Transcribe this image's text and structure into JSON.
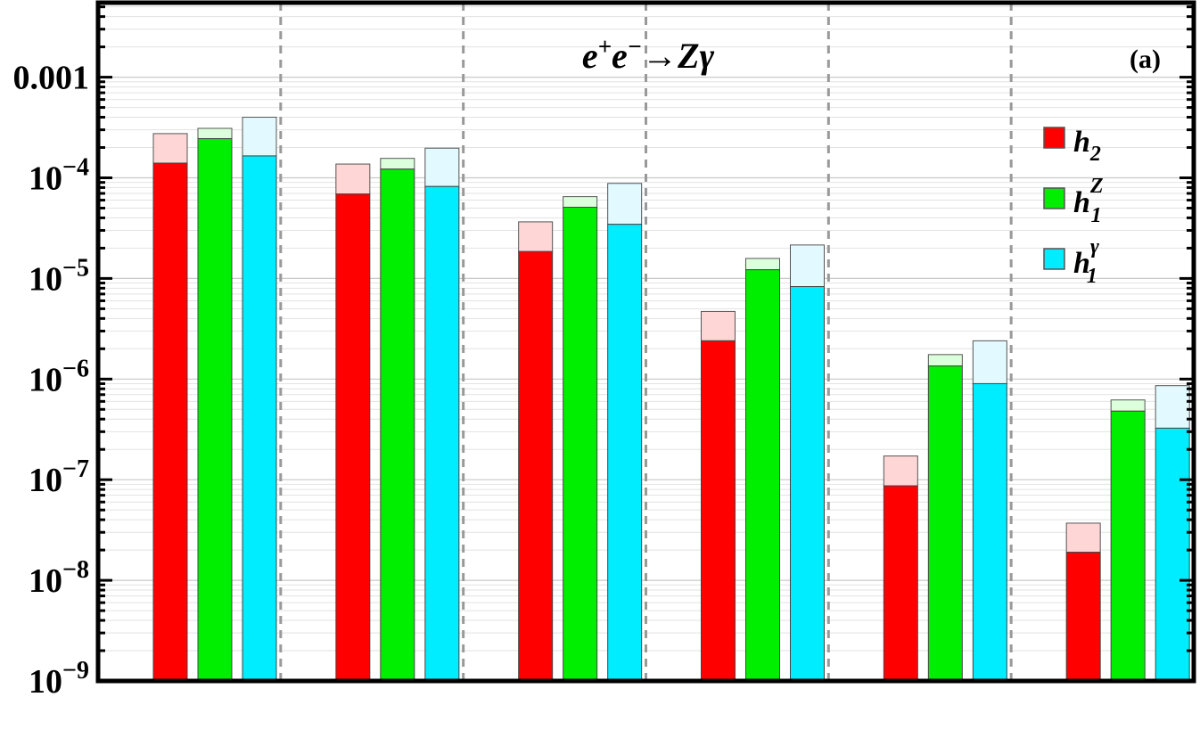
{
  "chart_data": {
    "type": "bar",
    "title": {
      "e": "e",
      "sup1": "+",
      "sup2": "−",
      "arrow": "→",
      "Z": "Z",
      "gamma": "γ"
    },
    "panel_label": "(a)",
    "xlabel": "",
    "ylabel": "",
    "yscale": "log",
    "ylim": [
      1e-09,
      0.0055
    ],
    "grid": true,
    "legend_position": "top-right",
    "yticks": [
      {
        "value": 0.001,
        "base": "0.001",
        "exp": ""
      },
      {
        "value": 0.0001,
        "base": "10",
        "exp": "−4"
      },
      {
        "value": 1e-05,
        "base": "10",
        "exp": "−5"
      },
      {
        "value": 1e-06,
        "base": "10",
        "exp": "−6"
      },
      {
        "value": 1e-07,
        "base": "10",
        "exp": "−7"
      },
      {
        "value": 1e-08,
        "base": "10",
        "exp": "−8"
      },
      {
        "value": 1e-09,
        "base": "10",
        "exp": "−9"
      }
    ],
    "group_count": 6,
    "series": [
      {
        "key": "h2",
        "label": "h",
        "sub": "2",
        "sup": "",
        "color": "#ff0000",
        "light_color": "#ffd6d6",
        "values": [
          0.00014,
          6.9e-05,
          1.85e-05,
          2.4e-06,
          8.7e-08,
          1.9e-08
        ],
        "upper": [
          0.000275,
          0.000137,
          3.65e-05,
          4.7e-06,
          1.72e-07,
          3.7e-08
        ]
      },
      {
        "key": "h1Z",
        "label": "h",
        "sub": "1",
        "sup": "Z",
        "color": "#00ee00",
        "light_color": "#dcffdc",
        "values": [
          0.000245,
          0.000122,
          5.1e-05,
          1.22e-05,
          1.35e-06,
          4.8e-07
        ],
        "upper": [
          0.00031,
          0.000156,
          6.5e-05,
          1.58e-05,
          1.75e-06,
          6.2e-07
        ]
      },
      {
        "key": "h1g",
        "label": "h",
        "sub": "1",
        "sup": "γ",
        "color": "#00ecff",
        "light_color": "#e2faff",
        "values": [
          0.000165,
          8.2e-05,
          3.45e-05,
          8.3e-06,
          9e-07,
          3.25e-07
        ],
        "upper": [
          0.0004,
          0.000197,
          8.8e-05,
          2.15e-05,
          2.4e-06,
          8.6e-07
        ]
      }
    ]
  }
}
